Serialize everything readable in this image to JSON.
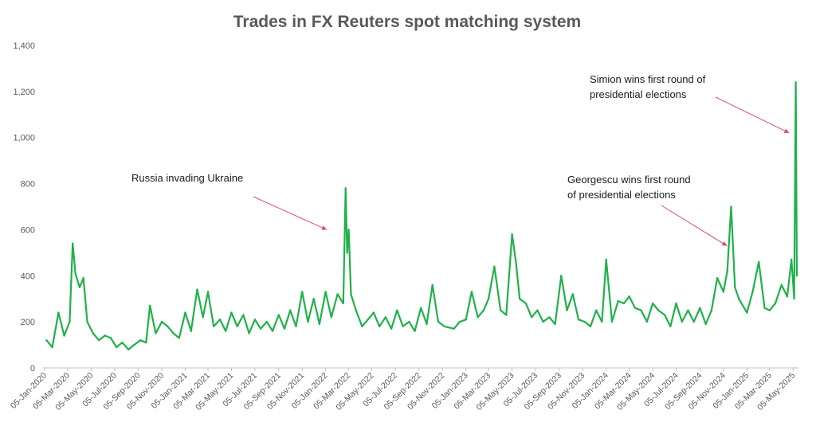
{
  "chart_data": {
    "type": "line",
    "title": "Trades in FX Reuters spot matching system",
    "xlabel": "",
    "ylabel": "",
    "ylim": [
      0,
      1400
    ],
    "yticks": [
      "0",
      "200",
      "400",
      "600",
      "800",
      "1,000",
      "1,200",
      "1,400"
    ],
    "x_start": "2020-01-05",
    "x_end": "2025-05-15",
    "xticks": [
      "05-Jan-2020",
      "05-Mar-2020",
      "05-May-2020",
      "05-Jul-2020",
      "05-Sep-2020",
      "05-Nov-2020",
      "05-Jan-2021",
      "05-Mar-2021",
      "05-May-2021",
      "05-Jul-2021",
      "05-Sep-2021",
      "05-Nov-2021",
      "05-Jan-2022",
      "05-Mar-2022",
      "05-May-2022",
      "05-Jul-2022",
      "05-Sep-2022",
      "05-Nov-2022",
      "05-Jan-2023",
      "05-Mar-2023",
      "05-May-2023",
      "05-Jul-2023",
      "05-Sep-2023",
      "05-Nov-2023",
      "05-Jan-2024",
      "05-Mar-2024",
      "05-May-2024",
      "05-Jul-2024",
      "05-Sep-2024",
      "05-Nov-2024",
      "05-Jan-2025",
      "05-Mar-2025",
      "05-May-2025"
    ],
    "series_color": "#1fb14a",
    "grid": false,
    "legend": "none",
    "series": [
      {
        "points": [
          [
            "2020-01-10",
            120
          ],
          [
            "2020-01-25",
            90
          ],
          [
            "2020-02-10",
            240
          ],
          [
            "2020-02-25",
            140
          ],
          [
            "2020-03-10",
            200
          ],
          [
            "2020-03-18",
            540
          ],
          [
            "2020-03-25",
            410
          ],
          [
            "2020-04-05",
            350
          ],
          [
            "2020-04-15",
            390
          ],
          [
            "2020-04-25",
            200
          ],
          [
            "2020-05-10",
            150
          ],
          [
            "2020-05-25",
            120
          ],
          [
            "2020-06-10",
            140
          ],
          [
            "2020-06-25",
            130
          ],
          [
            "2020-07-10",
            90
          ],
          [
            "2020-07-25",
            110
          ],
          [
            "2020-08-10",
            80
          ],
          [
            "2020-08-25",
            100
          ],
          [
            "2020-09-10",
            120
          ],
          [
            "2020-09-25",
            110
          ],
          [
            "2020-10-05",
            270
          ],
          [
            "2020-10-20",
            150
          ],
          [
            "2020-11-05",
            200
          ],
          [
            "2020-11-20",
            180
          ],
          [
            "2020-12-05",
            150
          ],
          [
            "2020-12-20",
            130
          ],
          [
            "2021-01-05",
            240
          ],
          [
            "2021-01-20",
            160
          ],
          [
            "2021-02-05",
            340
          ],
          [
            "2021-02-20",
            220
          ],
          [
            "2021-03-05",
            330
          ],
          [
            "2021-03-20",
            180
          ],
          [
            "2021-04-05",
            210
          ],
          [
            "2021-04-20",
            160
          ],
          [
            "2021-05-05",
            240
          ],
          [
            "2021-05-20",
            180
          ],
          [
            "2021-06-05",
            230
          ],
          [
            "2021-06-20",
            150
          ],
          [
            "2021-07-05",
            210
          ],
          [
            "2021-07-20",
            170
          ],
          [
            "2021-08-05",
            200
          ],
          [
            "2021-08-20",
            160
          ],
          [
            "2021-09-05",
            230
          ],
          [
            "2021-09-20",
            170
          ],
          [
            "2021-10-05",
            250
          ],
          [
            "2021-10-20",
            180
          ],
          [
            "2021-11-05",
            330
          ],
          [
            "2021-11-20",
            200
          ],
          [
            "2021-12-05",
            300
          ],
          [
            "2021-12-20",
            190
          ],
          [
            "2022-01-05",
            330
          ],
          [
            "2022-01-20",
            220
          ],
          [
            "2022-02-05",
            320
          ],
          [
            "2022-02-20",
            280
          ],
          [
            "2022-02-26",
            780
          ],
          [
            "2022-03-02",
            500
          ],
          [
            "2022-03-06",
            600
          ],
          [
            "2022-03-12",
            320
          ],
          [
            "2022-03-25",
            250
          ],
          [
            "2022-04-10",
            180
          ],
          [
            "2022-04-25",
            210
          ],
          [
            "2022-05-10",
            240
          ],
          [
            "2022-05-25",
            180
          ],
          [
            "2022-06-10",
            220
          ],
          [
            "2022-06-25",
            170
          ],
          [
            "2022-07-10",
            250
          ],
          [
            "2022-07-25",
            180
          ],
          [
            "2022-08-10",
            200
          ],
          [
            "2022-08-25",
            160
          ],
          [
            "2022-09-10",
            260
          ],
          [
            "2022-09-25",
            190
          ],
          [
            "2022-10-10",
            360
          ],
          [
            "2022-10-25",
            200
          ],
          [
            "2022-11-10",
            180
          ],
          [
            "2022-12-05",
            170
          ],
          [
            "2022-12-20",
            200
          ],
          [
            "2023-01-05",
            210
          ],
          [
            "2023-01-20",
            330
          ],
          [
            "2023-02-05",
            220
          ],
          [
            "2023-02-20",
            250
          ],
          [
            "2023-03-05",
            300
          ],
          [
            "2023-03-20",
            440
          ],
          [
            "2023-04-05",
            250
          ],
          [
            "2023-04-20",
            230
          ],
          [
            "2023-05-05",
            580
          ],
          [
            "2023-05-15",
            460
          ],
          [
            "2023-05-25",
            300
          ],
          [
            "2023-06-10",
            280
          ],
          [
            "2023-06-25",
            220
          ],
          [
            "2023-07-10",
            250
          ],
          [
            "2023-07-25",
            200
          ],
          [
            "2023-08-10",
            220
          ],
          [
            "2023-08-25",
            190
          ],
          [
            "2023-09-10",
            400
          ],
          [
            "2023-09-25",
            250
          ],
          [
            "2023-10-10",
            320
          ],
          [
            "2023-10-25",
            210
          ],
          [
            "2023-11-10",
            200
          ],
          [
            "2023-11-25",
            180
          ],
          [
            "2023-12-10",
            250
          ],
          [
            "2023-12-25",
            200
          ],
          [
            "2024-01-05",
            470
          ],
          [
            "2024-01-20",
            200
          ],
          [
            "2024-02-05",
            290
          ],
          [
            "2024-02-20",
            280
          ],
          [
            "2024-03-05",
            310
          ],
          [
            "2024-03-20",
            260
          ],
          [
            "2024-04-05",
            250
          ],
          [
            "2024-04-20",
            200
          ],
          [
            "2024-05-05",
            280
          ],
          [
            "2024-05-20",
            250
          ],
          [
            "2024-06-05",
            230
          ],
          [
            "2024-06-20",
            180
          ],
          [
            "2024-07-05",
            280
          ],
          [
            "2024-07-20",
            200
          ],
          [
            "2024-08-05",
            250
          ],
          [
            "2024-08-20",
            200
          ],
          [
            "2024-09-05",
            260
          ],
          [
            "2024-09-20",
            190
          ],
          [
            "2024-10-05",
            250
          ],
          [
            "2024-10-20",
            390
          ],
          [
            "2024-11-05",
            330
          ],
          [
            "2024-11-15",
            420
          ],
          [
            "2024-11-25",
            700
          ],
          [
            "2024-12-05",
            350
          ],
          [
            "2024-12-15",
            300
          ],
          [
            "2025-01-05",
            240
          ],
          [
            "2025-01-20",
            330
          ],
          [
            "2025-02-05",
            460
          ],
          [
            "2025-02-20",
            260
          ],
          [
            "2025-03-05",
            250
          ],
          [
            "2025-03-20",
            280
          ],
          [
            "2025-04-05",
            360
          ],
          [
            "2025-04-20",
            310
          ],
          [
            "2025-05-01",
            470
          ],
          [
            "2025-05-08",
            300
          ],
          [
            "2025-05-12",
            1240
          ],
          [
            "2025-05-15",
            400
          ]
        ]
      }
    ],
    "annotations": [
      {
        "lines": [
          "Russia invading Ukraine"
        ],
        "arrow_to": [
          "2022-01-08",
          600
        ]
      },
      {
        "lines": [
          "Georgescu wins first round",
          "of presidential elections"
        ],
        "arrow_to": [
          "2024-11-14",
          530
        ]
      },
      {
        "lines": [
          "Simion wins first round of",
          "presidential elections"
        ],
        "arrow_to": [
          "2025-04-25",
          1020
        ]
      }
    ],
    "annotation_arrow_color": "#d94a7f"
  }
}
